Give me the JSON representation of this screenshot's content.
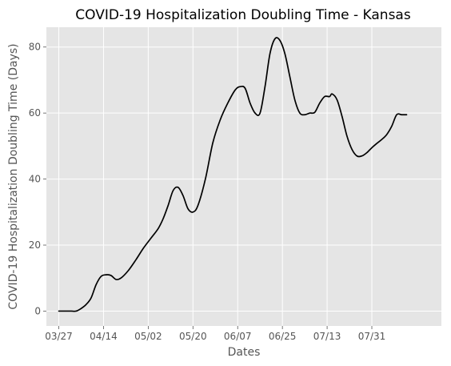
{
  "chart_data": {
    "type": "line",
    "title": "COVID-19 Hospitalization Doubling Time - Kansas",
    "xlabel": "Dates",
    "ylabel": "COVID-19 Hospitalization Doubling Time (Days)",
    "x_tick_labels": [
      "03/27",
      "04/14",
      "05/02",
      "05/20",
      "06/07",
      "06/25",
      "07/13",
      "07/31"
    ],
    "y_ticks": [
      0,
      20,
      40,
      60,
      80
    ],
    "xlim": [
      "2020-03-22",
      "2020-08-28"
    ],
    "ylim": [
      -4.5,
      86
    ],
    "grid": true,
    "background": "#e5e5e5",
    "line_color": "#000000",
    "series": [
      {
        "x": [
          "2020-03-27",
          "2020-03-30",
          "2020-04-01",
          "2020-04-03",
          "2020-04-05",
          "2020-04-07",
          "2020-04-09",
          "2020-04-11",
          "2020-04-13",
          "2020-04-15",
          "2020-04-17",
          "2020-04-19",
          "2020-04-21",
          "2020-04-24",
          "2020-04-27",
          "2020-04-30",
          "2020-05-03",
          "2020-05-06",
          "2020-05-08",
          "2020-05-10",
          "2020-05-12",
          "2020-05-14",
          "2020-05-16",
          "2020-05-18",
          "2020-05-20",
          "2020-05-22",
          "2020-05-25",
          "2020-05-28",
          "2020-05-31",
          "2020-06-03",
          "2020-06-06",
          "2020-06-08",
          "2020-06-10",
          "2020-06-12",
          "2020-06-14",
          "2020-06-16",
          "2020-06-18",
          "2020-06-20",
          "2020-06-22",
          "2020-06-24",
          "2020-06-26",
          "2020-06-28",
          "2020-06-30",
          "2020-07-02",
          "2020-07-04",
          "2020-07-06",
          "2020-07-08",
          "2020-07-10",
          "2020-07-12",
          "2020-07-14",
          "2020-07-15",
          "2020-07-17",
          "2020-07-19",
          "2020-07-21",
          "2020-07-23",
          "2020-07-25",
          "2020-07-27",
          "2020-07-29",
          "2020-07-31",
          "2020-08-02",
          "2020-08-04",
          "2020-08-06",
          "2020-08-08",
          "2020-08-10",
          "2020-08-12",
          "2020-08-14"
        ],
        "y": [
          0,
          0,
          0,
          0,
          0.8,
          2,
          4,
          8,
          10.5,
          11,
          10.8,
          9.6,
          10,
          12.3,
          15.5,
          19,
          22,
          25,
          28,
          32,
          36.5,
          37.5,
          35,
          31,
          30,
          32,
          40,
          51,
          58,
          63,
          67,
          68,
          67.5,
          63,
          60,
          60,
          68,
          78,
          82.5,
          82,
          78,
          71,
          64,
          60,
          59.5,
          60,
          60.2,
          63,
          65,
          65,
          65.8,
          64,
          59,
          53,
          49,
          47,
          47,
          48,
          49.5,
          50.8,
          52,
          53.5,
          56,
          59.5,
          59.5,
          59.5
        ]
      }
    ]
  }
}
